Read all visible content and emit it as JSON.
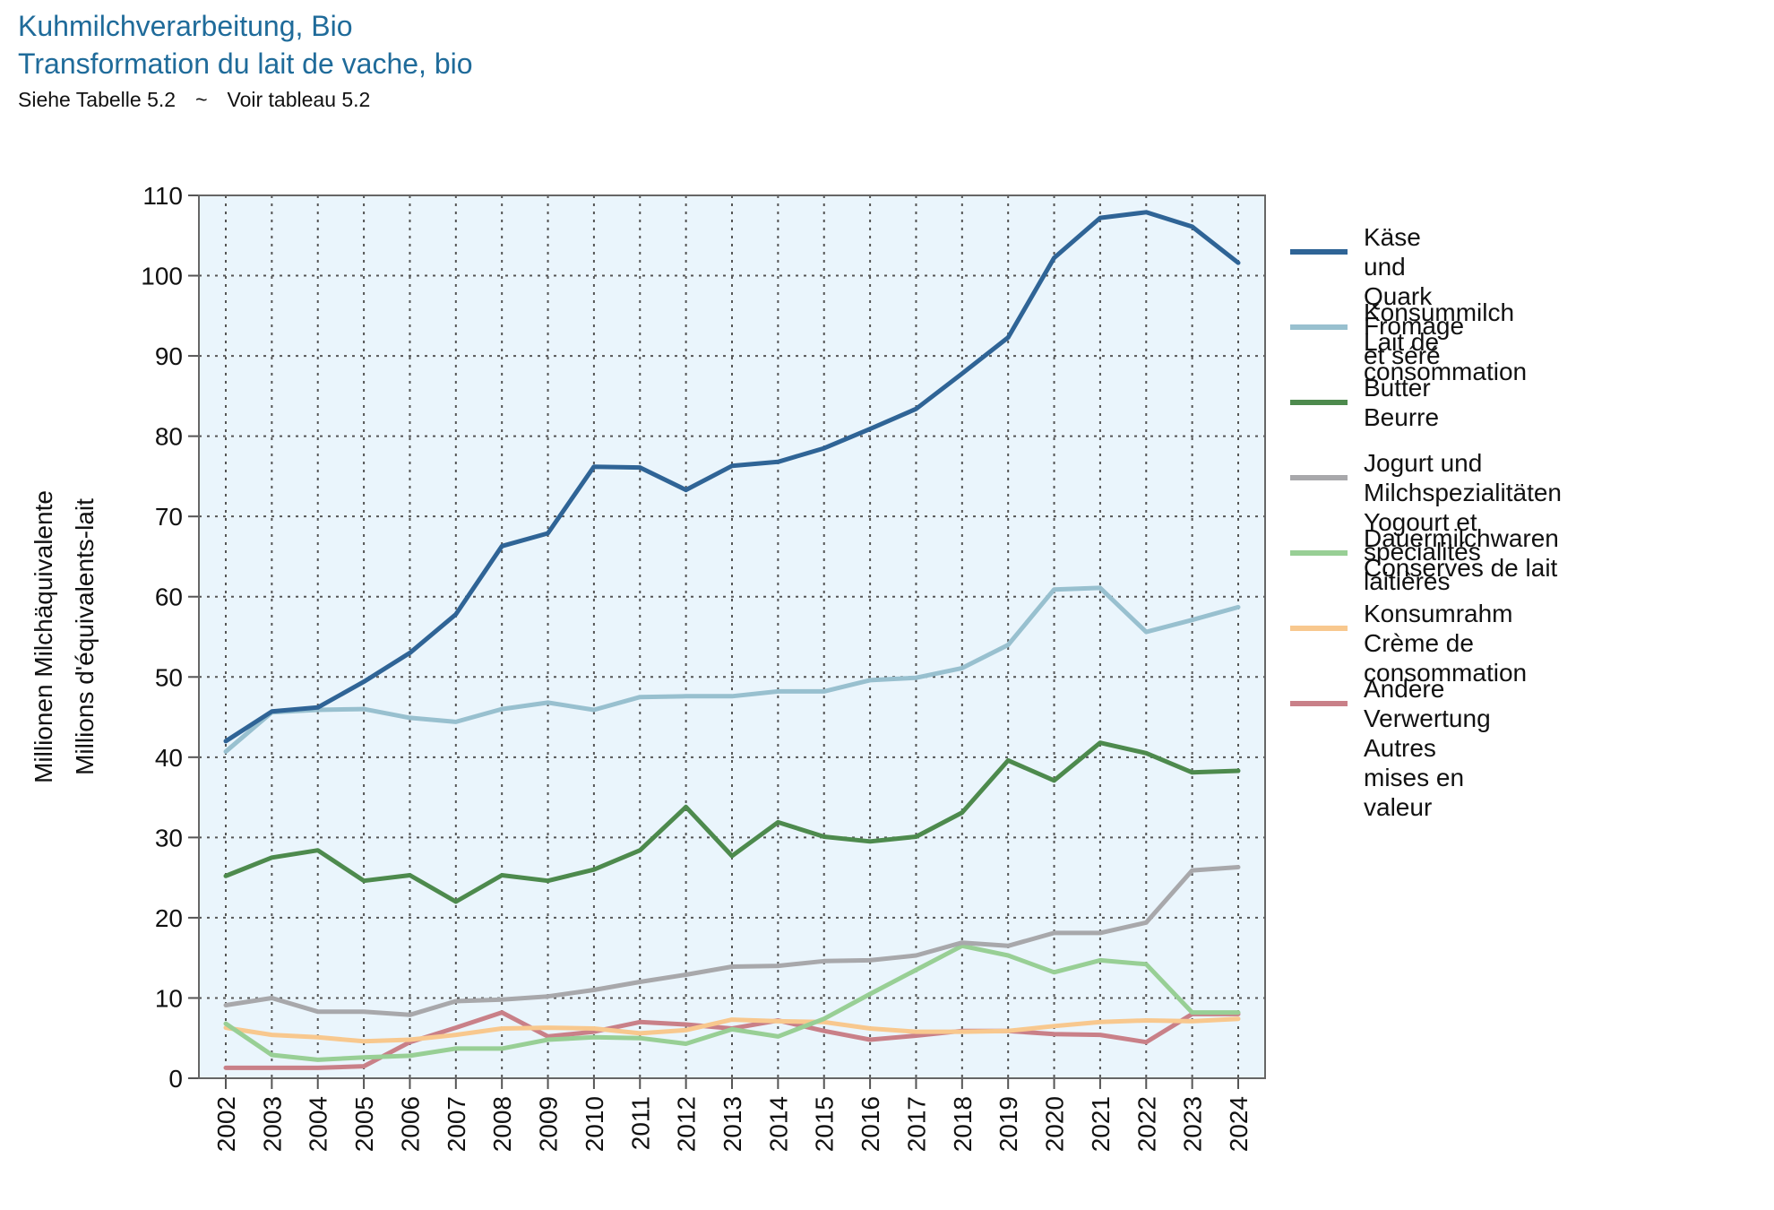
{
  "header": {
    "title": "Kuhmilchverarbeitung, Bio",
    "subtitle": "Transformation du lait de vache, bio",
    "source_de": "Siehe Tabelle 5.2",
    "source_sep": "~",
    "source_fr": "Voir tableau 5.2"
  },
  "colors": {
    "plot_background": "#eaf5fc",
    "grid": "#555555",
    "kaese": "#2f6496",
    "konsummilch": "#98c0cf",
    "butter": "#4d8a4d",
    "jogurt": "#a8a8ab",
    "dauermilch": "#98cf95",
    "konsumrahm": "#f8c88e",
    "andere": "#c98088"
  },
  "chart_data": {
    "type": "line",
    "title": "Kuhmilchverarbeitung, Bio",
    "subtitle": "Transformation du lait de vache, bio",
    "ylabel": [
      "Millionen Milchäquivalente",
      "Millions d'équivalents-lait"
    ],
    "ylim": [
      0,
      110
    ],
    "yticks": [
      0,
      10,
      20,
      30,
      40,
      50,
      60,
      70,
      80,
      90,
      100,
      110
    ],
    "grid": true,
    "legend_position": "right",
    "x": [
      2002,
      2003,
      2004,
      2005,
      2006,
      2007,
      2008,
      2009,
      2010,
      2011,
      2012,
      2013,
      2014,
      2015,
      2016,
      2017,
      2018,
      2019,
      2020,
      2021,
      2022,
      2023,
      2024
    ],
    "series": [
      {
        "key": "kaese",
        "name": "Käse und Quark",
        "name_fr": "Fromage et séré",
        "color": "#2f6496",
        "values": [
          42.0,
          45.7,
          46.2,
          49.4,
          53.0,
          57.8,
          66.3,
          67.9,
          76.2,
          76.1,
          73.3,
          76.3,
          76.8,
          78.5,
          80.9,
          83.4,
          87.8,
          92.3,
          102.2,
          107.2,
          107.9,
          106.1,
          101.6
        ]
      },
      {
        "key": "konsummilch",
        "name": "Konsummilch",
        "name_fr": "Lait de consommation",
        "color": "#98c0cf",
        "values": [
          40.7,
          45.6,
          45.9,
          46.0,
          44.9,
          44.4,
          46.0,
          46.8,
          45.9,
          47.5,
          47.6,
          47.6,
          48.2,
          48.2,
          49.6,
          49.9,
          51.1,
          54.0,
          60.9,
          61.1,
          55.6,
          57.1,
          58.7
        ]
      },
      {
        "key": "butter",
        "name": "Butter",
        "name_fr": "Beurre",
        "color": "#4d8a4d",
        "values": [
          25.2,
          27.5,
          28.4,
          24.6,
          25.3,
          22.0,
          25.3,
          24.6,
          26.0,
          28.4,
          33.8,
          27.7,
          31.9,
          30.1,
          29.5,
          30.1,
          33.1,
          39.6,
          37.1,
          41.8,
          40.5,
          38.1,
          38.3
        ]
      },
      {
        "key": "jogurt",
        "name": "Jogurt und Milchspezialitäten",
        "name_fr": "Yogourt et specialités laitières",
        "color": "#a8a8ab",
        "values": [
          9.1,
          10.0,
          8.3,
          8.3,
          7.9,
          9.6,
          9.8,
          10.2,
          11.0,
          12.0,
          12.9,
          13.9,
          14.0,
          14.6,
          14.7,
          15.3,
          16.9,
          16.5,
          18.1,
          18.1,
          19.4,
          25.9,
          26.3
        ]
      },
      {
        "key": "dauermilch",
        "name": "Dauermilchwaren",
        "name_fr": "Conserves de lait",
        "color": "#98cf95",
        "values": [
          6.8,
          2.9,
          2.3,
          2.6,
          2.8,
          3.7,
          3.7,
          4.8,
          5.1,
          5.0,
          4.3,
          6.1,
          5.2,
          7.4,
          10.5,
          13.5,
          16.5,
          15.3,
          13.2,
          14.7,
          14.2,
          8.2,
          8.2
        ]
      },
      {
        "key": "konsumrahm",
        "name": "Konsumrahm",
        "name_fr": "Crème de consommation",
        "color": "#f8c88e",
        "values": [
          6.3,
          5.4,
          5.1,
          4.6,
          4.8,
          5.4,
          6.2,
          6.3,
          6.2,
          5.6,
          6.0,
          7.3,
          7.1,
          7.0,
          6.2,
          5.8,
          5.8,
          5.9,
          6.5,
          7.0,
          7.2,
          7.1,
          7.4
        ]
      },
      {
        "key": "andere",
        "name": "Andere Verwertung",
        "name_fr": "Autres mises en valeur",
        "color": "#c98088",
        "values": [
          1.3,
          1.3,
          1.3,
          1.5,
          4.5,
          6.3,
          8.2,
          5.2,
          5.8,
          7.0,
          6.7,
          6.2,
          7.2,
          5.9,
          4.8,
          5.3,
          5.9,
          5.9,
          5.5,
          5.4,
          4.5,
          8.0,
          8.0
        ]
      }
    ]
  }
}
